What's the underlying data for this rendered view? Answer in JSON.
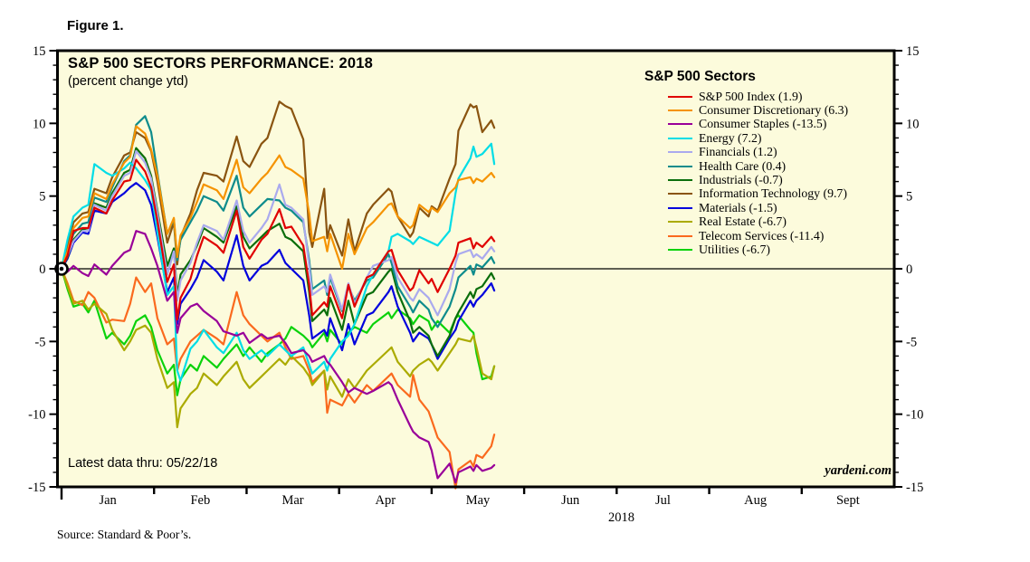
{
  "figure_label": "Figure 1.",
  "title": "S&P 500 SECTORS PERFORMANCE: 2018",
  "subtitle": "(percent change ytd)",
  "footnote": "Latest data thru: 05/22/18",
  "watermark": "yardeni.com",
  "source": "Source: Standard & Poor’s.",
  "legend": {
    "title": "S&P 500 Sectors",
    "entries": [
      {
        "label": "S&P 500 Index (1.9)",
        "color": "#e00000"
      },
      {
        "label": "Consumer Discretionary (6.3)",
        "color": "#f59300"
      },
      {
        "label": "Consumer Staples (-13.5)",
        "color": "#990099"
      },
      {
        "label": "Energy (7.2)",
        "color": "#00dde6"
      },
      {
        "label": "Financials (1.2)",
        "color": "#aaaaee"
      },
      {
        "label": "Health Care (0.4)",
        "color": "#0e8c8c"
      },
      {
        "label": "Industrials (-0.7)",
        "color": "#0b6e0b"
      },
      {
        "label": "Information Technology (9.7)",
        "color": "#8a5410"
      },
      {
        "label": "Materials (-1.5)",
        "color": "#0000dd"
      },
      {
        "label": "Real Estate (-6.7)",
        "color": "#abab00"
      },
      {
        "label": "Telecom Services (-11.4)",
        "color": "#fa6a1e"
      },
      {
        "label": "Utilities (-6.7)",
        "color": "#0bd20b"
      }
    ]
  },
  "colors": {
    "plot_bg": "#fcfbdc",
    "axis": "#000000",
    "zero_line": "#000000"
  },
  "chart_data": {
    "type": "line",
    "title": "S&P 500 SECTORS PERFORMANCE: 2018",
    "subtitle": "(percent change ytd)",
    "ylabel": "percent change ytd",
    "x_unit": "months since Jan 1, 2018 (0 = Jan 1; data thru May 22 = 4.677)",
    "x_axis": {
      "range": [
        0,
        9
      ],
      "months": [
        "Jan",
        "Feb",
        "Mar",
        "Apr",
        "May",
        "Jun",
        "Jul",
        "Aug",
        "Sept"
      ],
      "year": "2018"
    },
    "y_axis": {
      "range": [
        -15,
        15
      ],
      "major_ticks": [
        15,
        10,
        5,
        0,
        -5,
        -10,
        -15
      ],
      "minor_step": 1,
      "grid": false
    },
    "legend_position": "top-right-inside",
    "x": [
      0.0,
      0.065,
      0.129,
      0.226,
      0.29,
      0.355,
      0.484,
      0.548,
      0.677,
      0.742,
      0.806,
      0.903,
      0.968,
      1.036,
      1.143,
      1.214,
      1.25,
      1.286,
      1.393,
      1.464,
      1.536,
      1.679,
      1.75,
      1.893,
      1.964,
      2.032,
      2.161,
      2.226,
      2.355,
      2.419,
      2.484,
      2.613,
      2.677,
      2.71,
      2.839,
      2.871,
      2.903,
      3.033,
      3.1,
      3.167,
      3.3,
      3.367,
      3.533,
      3.567,
      3.633,
      3.767,
      3.8,
      3.867,
      3.967,
      4.0,
      4.065,
      4.194,
      4.258,
      4.29,
      4.419,
      4.452,
      4.484,
      4.548,
      4.645,
      4.677
    ],
    "series": [
      {
        "name": "S&P 500 Index",
        "final_value": 1.9,
        "color": "#e00000",
        "values": [
          0,
          0.9,
          2.6,
          2.8,
          2.8,
          4.2,
          3.8,
          4.7,
          6.0,
          6.1,
          7.5,
          6.7,
          5.6,
          3.3,
          -0.9,
          0.3,
          -3.5,
          -2.0,
          -0.7,
          0.9,
          2.2,
          1.6,
          1.1,
          4.0,
          1.5,
          0.7,
          2.0,
          2.4,
          4.1,
          2.8,
          2.9,
          1.6,
          -1.1,
          -3.2,
          -2.3,
          -2.6,
          -1.2,
          -3.4,
          -1.1,
          -2.6,
          -0.6,
          -0.4,
          1.2,
          1.3,
          -0.1,
          -1.5,
          -1.3,
          -0.1,
          -1.0,
          -0.7,
          -1.6,
          0.0,
          0.9,
          1.8,
          2.1,
          1.4,
          1.8,
          1.5,
          2.2,
          1.9
        ]
      },
      {
        "name": "Consumer Discretionary",
        "final_value": 6.3,
        "color": "#f59300",
        "values": [
          0,
          1.2,
          2.8,
          3.5,
          3.6,
          5.2,
          4.8,
          5.8,
          7.3,
          7.7,
          9.8,
          9.3,
          8.2,
          6.4,
          2.4,
          3.5,
          0.8,
          2.3,
          3.5,
          4.6,
          5.8,
          5.4,
          4.8,
          7.5,
          5.6,
          5.2,
          6.2,
          6.6,
          7.8,
          7.0,
          6.8,
          6.2,
          3.8,
          1.9,
          2.2,
          1.2,
          2.4,
          0.0,
          2.4,
          1.0,
          2.8,
          3.2,
          4.4,
          4.5,
          3.6,
          2.8,
          3.0,
          4.4,
          3.9,
          4.2,
          3.9,
          5.2,
          5.6,
          6.1,
          6.3,
          5.9,
          6.2,
          6.0,
          6.6,
          6.3
        ]
      },
      {
        "name": "Consumer Staples",
        "final_value": -13.5,
        "color": "#990099",
        "values": [
          0,
          -0.2,
          0.2,
          -0.3,
          -0.5,
          0.3,
          -0.4,
          0.2,
          1.1,
          1.3,
          2.6,
          2.4,
          1.4,
          0.2,
          -2.2,
          -1.6,
          -4.4,
          -3.4,
          -2.6,
          -2.4,
          -2.9,
          -3.6,
          -4.3,
          -4.6,
          -4.4,
          -5.1,
          -4.5,
          -4.8,
          -4.6,
          -5.1,
          -5.8,
          -5.6,
          -6.0,
          -6.4,
          -6.0,
          -6.4,
          -6.6,
          -7.8,
          -8.5,
          -8.2,
          -8.6,
          -8.4,
          -7.8,
          -8.0,
          -9.0,
          -10.8,
          -11.2,
          -11.6,
          -11.9,
          -12.5,
          -14.4,
          -13.4,
          -14.7,
          -14.0,
          -13.6,
          -13.9,
          -13.5,
          -13.9,
          -13.7,
          -13.5
        ]
      },
      {
        "name": "Energy",
        "final_value": 7.2,
        "color": "#00dde6",
        "values": [
          0,
          2.0,
          3.6,
          4.2,
          4.4,
          7.2,
          6.6,
          6.4,
          6.9,
          7.3,
          6.9,
          6.1,
          5.4,
          2.5,
          -1.8,
          -1.2,
          -7.0,
          -7.7,
          -5.5,
          -5.0,
          -4.2,
          -5.4,
          -5.8,
          -4.4,
          -5.6,
          -6.2,
          -5.6,
          -6.0,
          -5.2,
          -5.6,
          -6.0,
          -5.4,
          -6.6,
          -7.2,
          -6.4,
          -7.0,
          -6.2,
          -5.0,
          -4.6,
          -3.8,
          -1.2,
          -0.4,
          1.2,
          2.2,
          2.4,
          1.9,
          1.7,
          2.2,
          1.9,
          1.8,
          1.6,
          2.6,
          5.2,
          6.2,
          7.6,
          8.4,
          7.7,
          7.9,
          8.6,
          7.2
        ]
      },
      {
        "name": "Financials",
        "final_value": 1.2,
        "color": "#aaaaee",
        "values": [
          0,
          0.9,
          1.9,
          2.6,
          2.6,
          4.4,
          4.0,
          5.0,
          6.4,
          6.6,
          8.1,
          7.3,
          6.2,
          3.8,
          -0.4,
          1.2,
          -2.2,
          -0.8,
          0.4,
          1.8,
          3.0,
          2.6,
          2.0,
          4.7,
          2.6,
          1.8,
          2.8,
          3.4,
          5.8,
          4.4,
          4.2,
          3.4,
          0.2,
          -1.8,
          -1.2,
          -1.6,
          -0.4,
          -2.8,
          -1.0,
          -2.4,
          -0.6,
          0.2,
          0.6,
          0.8,
          -0.6,
          -2.0,
          -2.2,
          -1.4,
          -2.0,
          -2.4,
          -3.2,
          -1.4,
          0.4,
          1.0,
          1.3,
          0.8,
          1.0,
          0.7,
          1.5,
          1.2
        ]
      },
      {
        "name": "Health Care",
        "final_value": 0.4,
        "color": "#0e8c8c",
        "values": [
          0,
          1.2,
          2.4,
          3.1,
          3.2,
          4.9,
          4.6,
          5.6,
          7.4,
          7.8,
          9.9,
          10.5,
          9.4,
          6.6,
          2.4,
          3.4,
          0.6,
          2.0,
          3.2,
          4.0,
          5.0,
          4.6,
          4.0,
          6.4,
          4.2,
          3.6,
          4.4,
          4.8,
          4.7,
          4.2,
          4.0,
          3.2,
          0.6,
          -1.4,
          -0.8,
          -1.8,
          -0.6,
          -2.9,
          -1.2,
          -2.2,
          -0.8,
          -0.6,
          1.0,
          0.4,
          -1.2,
          -2.6,
          -3.0,
          -2.2,
          -2.8,
          -3.4,
          -4.0,
          -2.6,
          -1.4,
          -0.6,
          0.2,
          -0.4,
          0.3,
          0.1,
          0.8,
          0.4
        ]
      },
      {
        "name": "Industrials",
        "final_value": -0.7,
        "color": "#0b6e0b",
        "values": [
          0,
          0.8,
          2.0,
          2.7,
          2.8,
          4.5,
          4.2,
          5.2,
          6.6,
          6.8,
          8.3,
          7.6,
          6.4,
          4.0,
          0.2,
          1.4,
          -1.8,
          -0.4,
          0.6,
          1.6,
          2.8,
          2.2,
          1.8,
          4.3,
          2.2,
          1.4,
          2.2,
          2.6,
          3.1,
          2.2,
          2.0,
          1.2,
          -1.6,
          -3.6,
          -2.8,
          -3.2,
          -2.0,
          -4.2,
          -2.2,
          -3.8,
          -1.8,
          -1.6,
          -0.2,
          0.0,
          -1.6,
          -3.6,
          -4.4,
          -4.0,
          -4.6,
          -5.2,
          -6.0,
          -4.6,
          -3.4,
          -3.0,
          -1.6,
          -2.0,
          -1.4,
          -1.2,
          -0.3,
          -0.7
        ]
      },
      {
        "name": "Information Technology",
        "final_value": 9.7,
        "color": "#8a5410",
        "values": [
          0,
          1.5,
          3.2,
          3.8,
          3.9,
          5.5,
          5.2,
          6.3,
          7.8,
          8.0,
          9.4,
          9.0,
          8.1,
          6.0,
          1.8,
          3.2,
          0.3,
          2.2,
          3.8,
          5.4,
          6.6,
          6.4,
          6.0,
          9.1,
          7.4,
          7.0,
          8.6,
          9.0,
          11.5,
          11.2,
          11.0,
          8.9,
          2.5,
          1.5,
          5.5,
          2.1,
          3.0,
          0.9,
          3.4,
          1.2,
          3.8,
          4.4,
          5.5,
          5.3,
          3.6,
          2.2,
          2.5,
          4.2,
          3.6,
          4.3,
          4.0,
          6.2,
          7.2,
          9.5,
          11.3,
          11.1,
          11.2,
          9.4,
          10.2,
          9.7
        ]
      },
      {
        "name": "Materials",
        "final_value": -1.5,
        "color": "#0000dd",
        "values": [
          0,
          0.7,
          1.8,
          2.5,
          2.4,
          4.0,
          3.8,
          4.6,
          5.2,
          5.6,
          5.9,
          5.4,
          4.4,
          2.2,
          -1.6,
          -0.6,
          -3.8,
          -2.4,
          -1.4,
          -0.6,
          0.6,
          -0.2,
          -0.8,
          2.3,
          0.2,
          -0.8,
          0.2,
          0.4,
          1.3,
          0.4,
          0.0,
          -0.8,
          -3.2,
          -4.8,
          -4.2,
          -4.6,
          -3.4,
          -5.6,
          -3.8,
          -5.2,
          -3.2,
          -3.0,
          -1.6,
          -1.2,
          -2.6,
          -4.4,
          -5.0,
          -4.4,
          -4.8,
          -5.2,
          -6.2,
          -4.8,
          -4.2,
          -3.6,
          -2.2,
          -2.6,
          -2.2,
          -1.8,
          -1.0,
          -1.5
        ]
      },
      {
        "name": "Real Estate",
        "final_value": -6.7,
        "color": "#abab00",
        "values": [
          0,
          -1.2,
          -2.4,
          -2.2,
          -2.8,
          -2.4,
          -3.1,
          -4.2,
          -5.6,
          -5.0,
          -4.2,
          -3.9,
          -4.4,
          -6.2,
          -8.2,
          -7.8,
          -10.9,
          -9.6,
          -8.6,
          -8.2,
          -7.2,
          -8.0,
          -7.4,
          -6.4,
          -7.6,
          -8.2,
          -7.4,
          -7.0,
          -6.2,
          -6.6,
          -6.0,
          -6.8,
          -7.4,
          -8.0,
          -7.0,
          -8.3,
          -7.4,
          -8.8,
          -7.6,
          -8.2,
          -7.0,
          -6.6,
          -5.6,
          -5.4,
          -6.4,
          -7.4,
          -7.0,
          -6.6,
          -6.2,
          -6.4,
          -7.0,
          -5.8,
          -5.2,
          -4.8,
          -5.0,
          -4.6,
          -5.4,
          -7.2,
          -7.6,
          -6.7
        ]
      },
      {
        "name": "Telecom Services",
        "final_value": -11.4,
        "color": "#fa6a1e",
        "values": [
          0,
          -1.0,
          -2.2,
          -2.5,
          -1.6,
          -2.0,
          -3.7,
          -3.5,
          -3.6,
          -2.4,
          -0.6,
          -1.6,
          -1.0,
          -3.4,
          -5.2,
          -4.8,
          -7.0,
          -6.2,
          -5.0,
          -4.6,
          -4.2,
          -4.8,
          -5.2,
          -1.6,
          -3.2,
          -3.8,
          -4.6,
          -5.0,
          -4.4,
          -5.4,
          -6.2,
          -6.0,
          -7.0,
          -7.8,
          -7.0,
          -9.9,
          -9.0,
          -9.4,
          -8.6,
          -9.2,
          -8.0,
          -8.4,
          -7.4,
          -7.2,
          -8.0,
          -8.8,
          -7.3,
          -9.0,
          -9.8,
          -10.4,
          -11.6,
          -12.6,
          -15.1,
          -13.8,
          -13.2,
          -13.6,
          -12.8,
          -13.0,
          -12.2,
          -11.4
        ]
      },
      {
        "name": "Utilities",
        "final_value": -6.7,
        "color": "#0bd20b",
        "values": [
          0,
          -1.4,
          -2.6,
          -2.4,
          -3.0,
          -2.2,
          -4.8,
          -4.4,
          -5.2,
          -4.6,
          -3.6,
          -3.2,
          -4.0,
          -5.6,
          -7.2,
          -6.6,
          -8.7,
          -7.6,
          -6.6,
          -7.0,
          -6.0,
          -6.8,
          -6.2,
          -5.2,
          -6.0,
          -5.4,
          -6.4,
          -5.8,
          -5.2,
          -4.8,
          -4.0,
          -4.6,
          -5.0,
          -5.4,
          -4.4,
          -5.0,
          -4.2,
          -5.2,
          -4.4,
          -4.0,
          -4.4,
          -3.8,
          -3.0,
          -3.4,
          -2.8,
          -3.4,
          -3.8,
          -3.2,
          -3.6,
          -4.2,
          -3.6,
          -4.4,
          -3.4,
          -3.2,
          -4.2,
          -4.4,
          -5.8,
          -7.6,
          -7.4,
          -6.7
        ]
      }
    ],
    "annotations": [
      {
        "text": "Latest data thru: 05/22/18",
        "position": "bottom-left-inside"
      },
      {
        "text": "yardeni.com",
        "position": "bottom-right-inside"
      }
    ]
  }
}
